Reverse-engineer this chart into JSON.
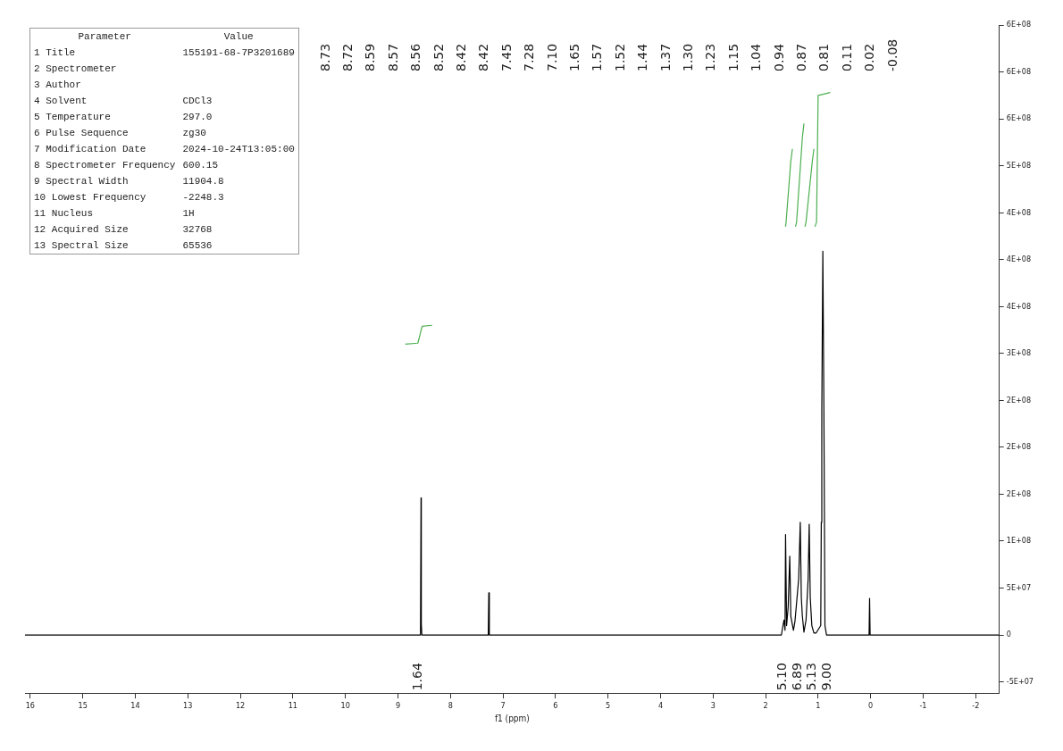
{
  "chart_data": {
    "type": "line",
    "xlabel": "f1 (ppm)",
    "marker": "none",
    "grid": false,
    "legend": false,
    "xlim": [
      16.1,
      -2.45
    ],
    "xticks": [
      16,
      15,
      14,
      13,
      12,
      11,
      10,
      9,
      8,
      7,
      6,
      5,
      4,
      3,
      2,
      1,
      0,
      -1,
      -2
    ],
    "ylim": [
      -62000000,
      650000000
    ],
    "yticks": [
      {
        "value": 650000000,
        "label": "6E+08"
      },
      {
        "value": 600000000,
        "label": "6E+08"
      },
      {
        "value": 550000000,
        "label": "6E+08"
      },
      {
        "value": 500000000,
        "label": "5E+08"
      },
      {
        "value": 450000000,
        "label": "4E+08"
      },
      {
        "value": 400000000,
        "label": "4E+08"
      },
      {
        "value": 350000000,
        "label": "4E+08"
      },
      {
        "value": 300000000,
        "label": "3E+08"
      },
      {
        "value": 250000000,
        "label": "2E+08"
      },
      {
        "value": 200000000,
        "label": "2E+08"
      },
      {
        "value": 150000000,
        "label": "2E+08"
      },
      {
        "value": 100000000,
        "label": "1E+08"
      },
      {
        "value": 50000000,
        "label": "5E+07"
      },
      {
        "value": 0,
        "label": "0"
      },
      {
        "value": -50000000,
        "label": "-5E+07"
      }
    ],
    "series": [
      {
        "color": "#000000",
        "x": [
          16.1,
          8.58,
          8.57,
          8.56,
          8.555,
          8.545,
          7.28,
          7.27,
          7.26,
          1.7,
          1.65,
          1.63,
          1.62,
          1.6,
          1.57,
          1.54,
          1.52,
          1.47,
          1.44,
          1.37,
          1.34,
          1.32,
          1.3,
          1.27,
          1.23,
          1.19,
          1.17,
          1.15,
          1.12,
          1.08,
          1.04,
          0.95,
          0.94,
          0.93,
          0.91,
          0.89,
          0.87,
          0.84,
          0.03,
          0.02,
          0.01,
          -2.45
        ],
        "values": [
          0,
          0,
          5000000,
          146000000,
          12000000,
          0,
          0,
          45000000,
          0,
          0,
          16000000,
          5000000,
          107000000,
          10000000,
          30000000,
          84000000,
          20000000,
          5000000,
          15000000,
          60000000,
          120000000,
          40000000,
          20000000,
          3000000,
          16000000,
          60000000,
          118000000,
          40000000,
          10000000,
          2000000,
          2000000,
          10000000,
          120000000,
          240000000,
          409000000,
          240000000,
          10000000,
          0,
          0,
          39000000,
          0,
          0
        ]
      },
      {
        "color": "#4caf50",
        "x": [
          8.86,
          8.62,
          8.58,
          8.54,
          8.35
        ],
        "values": [
          310000000,
          311000000,
          320000000,
          329000000,
          330000000
        ]
      },
      {
        "color": "#4caf50",
        "x": [
          1.62,
          1.61,
          1.52,
          1.49
        ],
        "values": [
          435000000,
          440000000,
          505000000,
          518000000
        ]
      },
      {
        "color": "#4caf50",
        "x": [
          1.43,
          1.41,
          1.3,
          1.27
        ],
        "values": [
          435000000,
          440000000,
          530000000,
          545000000
        ]
      },
      {
        "color": "#4caf50",
        "x": [
          1.25,
          1.23,
          1.11,
          1.08
        ],
        "values": [
          435000000,
          440000000,
          505000000,
          518000000
        ]
      },
      {
        "color": "#4caf50",
        "x": [
          1.06,
          1.03,
          1.0,
          0.77
        ],
        "values": [
          435000000,
          440000000,
          575000000,
          578000000
        ]
      }
    ],
    "annotations": [
      "Parameter",
      "Value",
      "1 Title",
      "155191-68-7P3201689",
      "2 Spectrometer",
      null,
      "3 Author",
      null,
      "4 Solvent",
      "CDCl3",
      "5 Temperature",
      "297.0",
      "6 Pulse Sequence",
      "zg30",
      "7 Modification Date",
      "2024-10-24T13:05:00",
      "8 Spectrometer Frequency",
      "600.15",
      "9 Spectral Width",
      "11904.8",
      "10 Lowest Frequency",
      "-2248.3",
      "11 Nucleus",
      "1H",
      "12 Acquired Size",
      "32768",
      "13 Spectral Size",
      "65536",
      {
        "text": "8.73"
      },
      {
        "text": "8.72"
      },
      {
        "text": "8.59"
      },
      {
        "text": "8.57"
      },
      {
        "text": "8.56"
      },
      {
        "text": "8.52"
      },
      {
        "text": "8.42"
      },
      {
        "text": "8.42"
      },
      {
        "text": "7.45"
      },
      {
        "text": "7.28"
      },
      {
        "text": "7.10"
      },
      {
        "text": "1.65"
      },
      {
        "text": "1.57"
      },
      {
        "text": "1.52"
      },
      {
        "text": "1.44"
      },
      {
        "text": "1.37"
      },
      {
        "text": "1.30"
      },
      {
        "text": "1.23"
      },
      {
        "text": "1.15"
      },
      {
        "text": "1.04"
      },
      {
        "text": "0.94"
      },
      {
        "text": "0.87"
      },
      {
        "text": "0.81"
      },
      {
        "text": "0.11"
      },
      {
        "text": "0.02"
      },
      {
        "text": "-0.08"
      },
      "1.64",
      "5.10",
      "6.89",
      "5.13",
      "9.00"
    ]
  }
}
